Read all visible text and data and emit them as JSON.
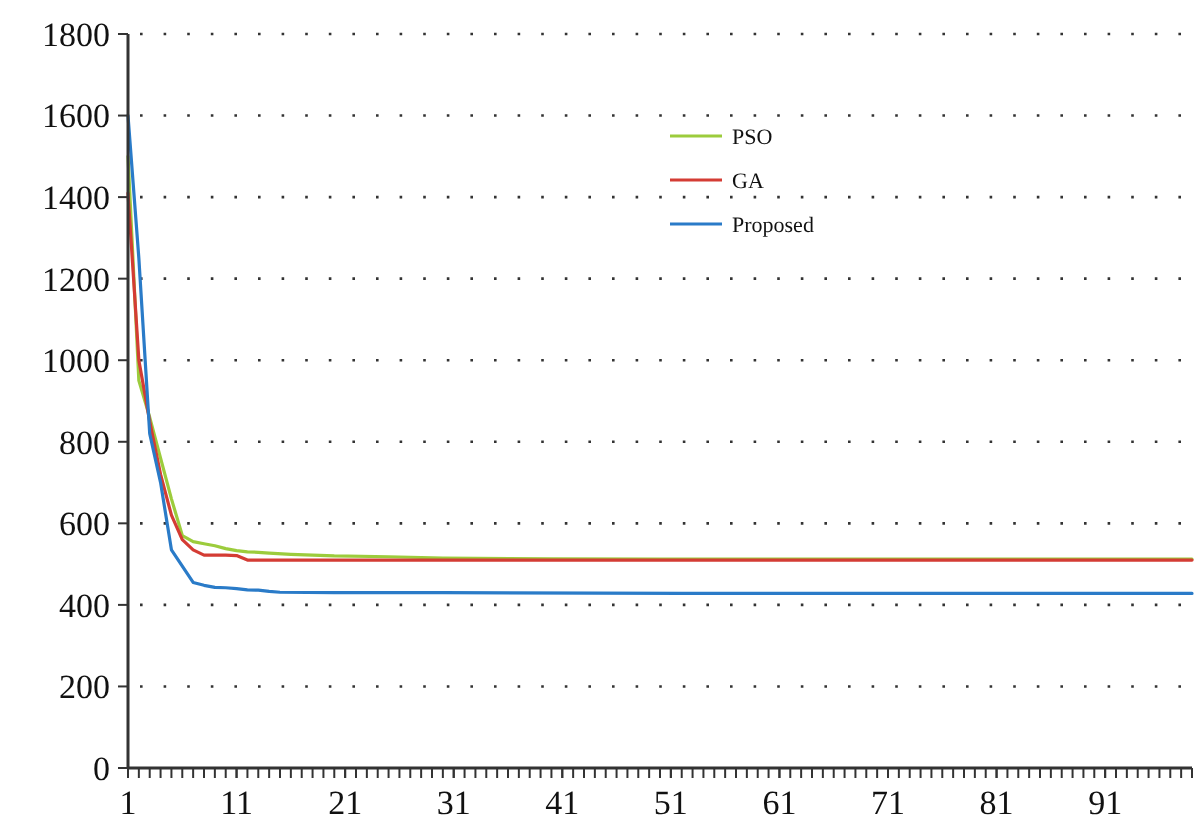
{
  "chart_data": {
    "type": "line",
    "xlim": [
      1,
      99
    ],
    "xticks": [
      1,
      11,
      21,
      31,
      41,
      51,
      61,
      71,
      81,
      91
    ],
    "ylim": [
      0,
      1800
    ],
    "yticks": [
      0,
      200,
      400,
      600,
      800,
      1000,
      1200,
      1400,
      1600,
      1800
    ],
    "grid": "y",
    "legend": "top",
    "line_style": "solid",
    "marker": "none",
    "series": [
      {
        "name": "PSO",
        "color": "#9ccc3c",
        "x": [
          1,
          2,
          3,
          4,
          5,
          6,
          7,
          8,
          9,
          10,
          11,
          12,
          13,
          14,
          16,
          18,
          20,
          25,
          30,
          40,
          50,
          99
        ],
        "values": [
          1500,
          950,
          860,
          760,
          660,
          570,
          555,
          550,
          545,
          538,
          533,
          530,
          529,
          527,
          524,
          522,
          520,
          518,
          515,
          513,
          512,
          512
        ]
      },
      {
        "name": "GA",
        "color": "#d43c34",
        "x": [
          1,
          2,
          3,
          4,
          5,
          6,
          7,
          8,
          9,
          10,
          11,
          12,
          13,
          20,
          40,
          99
        ],
        "values": [
          1410,
          1000,
          850,
          720,
          620,
          560,
          535,
          522,
          522,
          522,
          521,
          510,
          510,
          510,
          510,
          510
        ]
      },
      {
        "name": "Proposed",
        "color": "#2a7bc8",
        "x": [
          1,
          2,
          3,
          4,
          5,
          6,
          7,
          8,
          9,
          10,
          11,
          12,
          13,
          14,
          15,
          20,
          30,
          52,
          99
        ],
        "values": [
          1600,
          1250,
          820,
          700,
          535,
          495,
          455,
          448,
          443,
          442,
          440,
          437,
          436,
          433,
          431,
          430,
          430,
          428,
          428
        ]
      }
    ]
  }
}
